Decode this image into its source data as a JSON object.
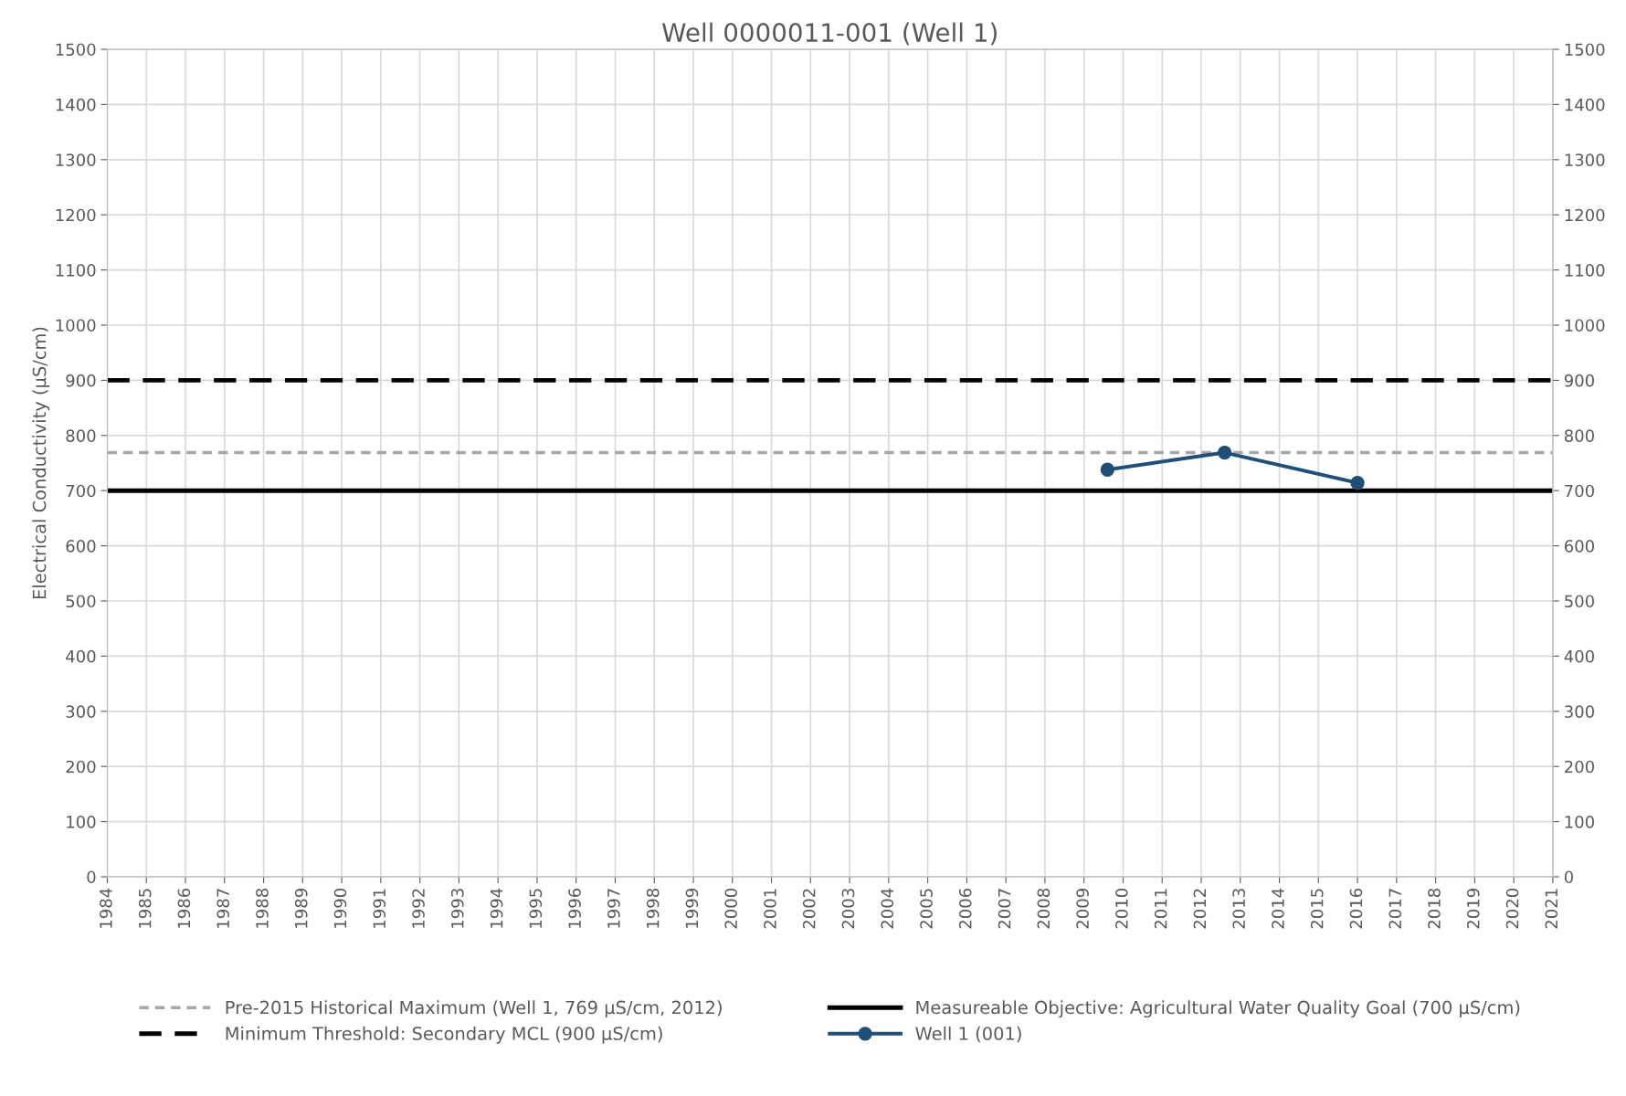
{
  "chart_data": {
    "type": "line",
    "title": "Well 0000011-001 (Well 1)",
    "ylabel": "Electrical Conductivity (µS/cm)",
    "series": [
      {
        "name": "Well 1 (001)",
        "color": "#1f4e79",
        "x": [
          2009.6,
          2012.6,
          2016.0
        ],
        "values": [
          738,
          769,
          714
        ],
        "marker": "circle",
        "line_style": "solid"
      }
    ],
    "ref_lines": [
      {
        "axis": "y",
        "value": 769,
        "label": "Pre-2015 Historical Maximum (Well 1, 769 µS/cm, 2012)",
        "color": "#a6a6a6",
        "line_style": "dashed"
      },
      {
        "axis": "y",
        "value": 900,
        "label": "Minimum Threshold: Secondary MCL (900 µS/cm)",
        "color": "#000000",
        "line_style": "longdash"
      },
      {
        "axis": "y",
        "value": 700,
        "label": "Measureable Objective: Agricultural Water Quality Goal (700 µS/cm)",
        "color": "#000000",
        "line_style": "solid"
      }
    ],
    "xlim": [
      1984,
      2021
    ],
    "xticks": [
      1984,
      1985,
      1986,
      1987,
      1988,
      1989,
      1990,
      1991,
      1992,
      1993,
      1994,
      1995,
      1996,
      1997,
      1998,
      1999,
      2000,
      2001,
      2002,
      2003,
      2004,
      2005,
      2006,
      2007,
      2008,
      2009,
      2010,
      2011,
      2012,
      2013,
      2014,
      2015,
      2016,
      2017,
      2018,
      2019,
      2020,
      2021
    ],
    "ylim": [
      0,
      1500
    ],
    "yticks": [
      0,
      100,
      200,
      300,
      400,
      500,
      600,
      700,
      800,
      900,
      1000,
      1100,
      1200,
      1300,
      1400,
      1500
    ],
    "y2lim": [
      0,
      1500
    ],
    "y2ticks": [
      0,
      100,
      200,
      300,
      400,
      500,
      600,
      700,
      800,
      900,
      1000,
      1100,
      1200,
      1300,
      1400,
      1500
    ],
    "grid": true,
    "legend": "bottom"
  }
}
